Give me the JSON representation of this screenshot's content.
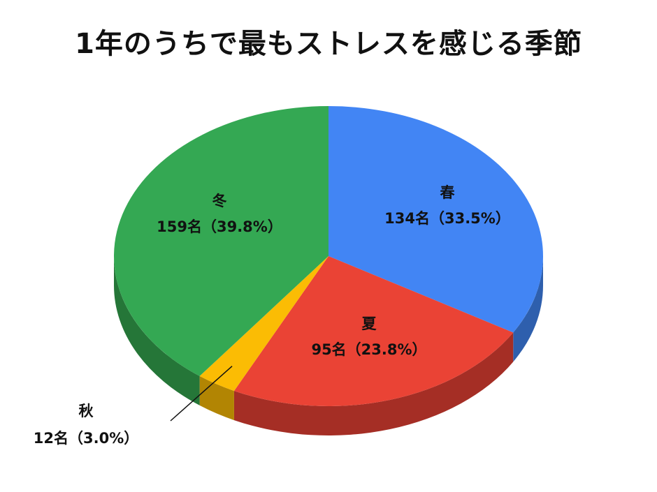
{
  "chart_data": {
    "type": "pie",
    "title": "1年のうちで最もストレスを感じる季節",
    "categories": [
      "春",
      "夏",
      "秋",
      "冬"
    ],
    "values": [
      134,
      95,
      12,
      159
    ],
    "value_labels": [
      "134名（33.5%）",
      "95名（23.8%）",
      "12名（3.0%）",
      "159名（39.8%）"
    ],
    "colors": [
      "#4285f4",
      "#ea4335",
      "#fbbc04",
      "#34a853"
    ],
    "side_colors": [
      "#2e5fad",
      "#a52e25",
      "#b28503",
      "#257638"
    ],
    "legend": "none",
    "style": "3d"
  }
}
